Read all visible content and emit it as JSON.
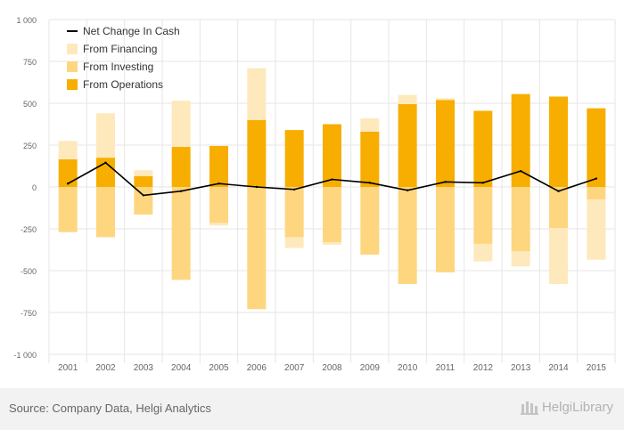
{
  "footer": {
    "source": "Source: Company Data, Helgi Analytics",
    "brand": "HelgiLibrary"
  },
  "colors": {
    "operations": "#f7ae00",
    "investing": "#fdd67f",
    "financing": "#fee9bd",
    "net": "#000000",
    "grid": "#e6e6e6",
    "tick": "#666666"
  },
  "chart_data": {
    "type": "bar",
    "stacked": true,
    "categories": [
      "2001",
      "2002",
      "2003",
      "2004",
      "2005",
      "2006",
      "2007",
      "2008",
      "2009",
      "2010",
      "2011",
      "2012",
      "2013",
      "2014",
      "2015"
    ],
    "ylim": [
      -1000,
      1000
    ],
    "yticks": [
      -1000,
      -750,
      -500,
      -250,
      0,
      250,
      500,
      750,
      1000
    ],
    "ytick_labels": [
      "-1 000",
      "-750",
      "-500",
      "-250",
      "0",
      "250",
      "500",
      "750",
      "1 000"
    ],
    "grid": true,
    "legend_position": "top-left",
    "series": [
      {
        "name": "From Operations",
        "values": [
          165,
          175,
          65,
          240,
          245,
          400,
          340,
          375,
          330,
          495,
          520,
          455,
          555,
          540,
          470
        ]
      },
      {
        "name": "From Investing",
        "values": [
          -270,
          -300,
          -165,
          -555,
          -215,
          -730,
          -300,
          -330,
          -405,
          -580,
          -510,
          -340,
          -385,
          -245,
          -75
        ]
      },
      {
        "name": "From Financing",
        "values": [
          110,
          265,
          35,
          275,
          -15,
          310,
          -65,
          -15,
          80,
          55,
          10,
          -105,
          -90,
          -335,
          -360
        ]
      },
      {
        "name": "Net Change In Cash",
        "values": [
          20,
          145,
          -50,
          -25,
          20,
          0,
          -15,
          45,
          25,
          -20,
          30,
          25,
          95,
          -25,
          50
        ]
      }
    ]
  }
}
